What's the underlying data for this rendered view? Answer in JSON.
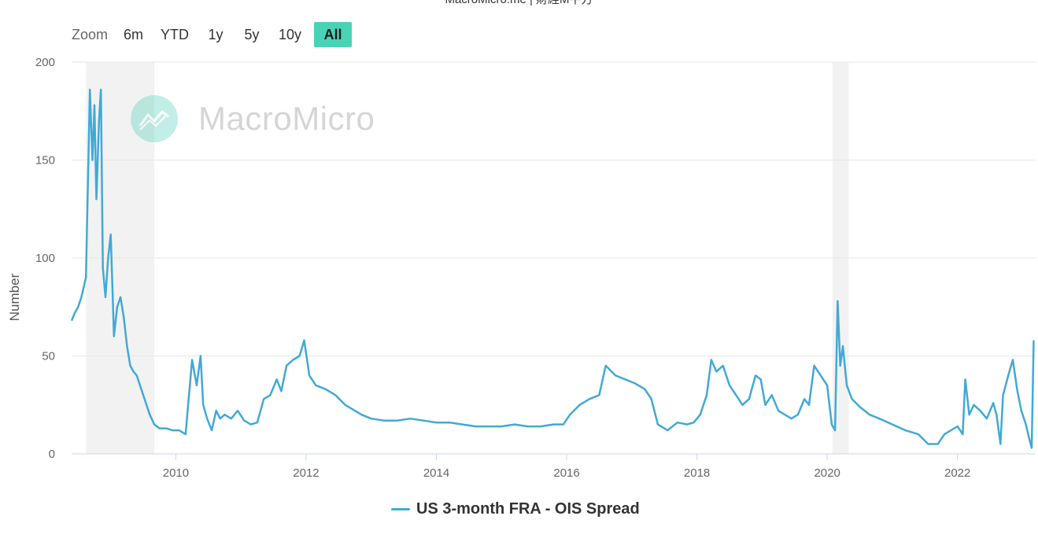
{
  "page": {
    "source_header": "MacroMicro.me | 財經M平方"
  },
  "zoom": {
    "label": "Zoom",
    "buttons": [
      {
        "label": "6m",
        "active": false
      },
      {
        "label": "YTD",
        "active": false
      },
      {
        "label": "1y",
        "active": false
      },
      {
        "label": "5y",
        "active": false
      },
      {
        "label": "10y",
        "active": false
      },
      {
        "label": "All",
        "active": true
      }
    ]
  },
  "watermark": {
    "text": "MacroMicro"
  },
  "colors": {
    "series": "#41a9d6",
    "recession": "#f2f2f2",
    "accent": "#49d3b6"
  },
  "chart_data": {
    "type": "line",
    "title": "",
    "xlabel": "",
    "ylabel": "Number",
    "xlim": [
      2008.4,
      2023.2
    ],
    "ylim": [
      0,
      200
    ],
    "yticks": [
      0,
      50,
      100,
      150,
      200
    ],
    "xticks": [
      2010,
      2012,
      2014,
      2016,
      2018,
      2020,
      2022
    ],
    "grid": true,
    "legend": "bottom-center",
    "shaded_periods": [
      [
        2008.62,
        2009.67
      ],
      [
        2020.08,
        2020.33
      ]
    ],
    "series": [
      {
        "name": "US 3-month FRA - OIS Spread",
        "x": [
          2008.4,
          2008.45,
          2008.5,
          2008.55,
          2008.62,
          2008.68,
          2008.72,
          2008.75,
          2008.78,
          2008.82,
          2008.85,
          2008.88,
          2008.92,
          2008.96,
          2009.0,
          2009.03,
          2009.05,
          2009.1,
          2009.15,
          2009.2,
          2009.25,
          2009.3,
          2009.35,
          2009.4,
          2009.45,
          2009.5,
          2009.55,
          2009.6,
          2009.67,
          2009.75,
          2009.85,
          2009.95,
          2010.05,
          2010.15,
          2010.25,
          2010.32,
          2010.38,
          2010.42,
          2010.48,
          2010.55,
          2010.62,
          2010.68,
          2010.75,
          2010.85,
          2010.95,
          2011.05,
          2011.15,
          2011.25,
          2011.35,
          2011.45,
          2011.55,
          2011.62,
          2011.7,
          2011.8,
          2011.9,
          2011.97,
          2012.05,
          2012.15,
          2012.3,
          2012.45,
          2012.6,
          2012.75,
          2012.85,
          2013.0,
          2013.2,
          2013.4,
          2013.6,
          2013.8,
          2014.0,
          2014.2,
          2014.4,
          2014.6,
          2014.8,
          2015.0,
          2015.2,
          2015.4,
          2015.6,
          2015.8,
          2015.95,
          2016.05,
          2016.2,
          2016.35,
          2016.5,
          2016.6,
          2016.75,
          2016.9,
          2017.05,
          2017.2,
          2017.3,
          2017.4,
          2017.55,
          2017.7,
          2017.85,
          2017.95,
          2018.05,
          2018.15,
          2018.22,
          2018.3,
          2018.4,
          2018.5,
          2018.6,
          2018.7,
          2018.8,
          2018.9,
          2018.98,
          2019.05,
          2019.15,
          2019.25,
          2019.35,
          2019.45,
          2019.55,
          2019.65,
          2019.72,
          2019.8,
          2019.9,
          2020.0,
          2020.07,
          2020.12,
          2020.16,
          2020.2,
          2020.24,
          2020.3,
          2020.38,
          2020.5,
          2020.65,
          2020.8,
          2021.0,
          2021.2,
          2021.4,
          2021.55,
          2021.7,
          2021.8,
          2021.9,
          2022.0,
          2022.08,
          2022.12,
          2022.18,
          2022.25,
          2022.35,
          2022.45,
          2022.55,
          2022.6,
          2022.66,
          2022.7,
          2022.78,
          2022.85,
          2022.92,
          2022.98,
          2023.05,
          2023.1,
          2023.14,
          2023.17
        ],
        "y": [
          68,
          72,
          75,
          80,
          90,
          186,
          150,
          178,
          130,
          170,
          186,
          95,
          80,
          100,
          112,
          82,
          60,
          75,
          80,
          70,
          55,
          45,
          42,
          40,
          35,
          30,
          25,
          20,
          15,
          13,
          13,
          12,
          12,
          10,
          48,
          35,
          50,
          25,
          18,
          12,
          22,
          18,
          20,
          18,
          22,
          17,
          15,
          16,
          28,
          30,
          38,
          32,
          45,
          48,
          50,
          58,
          40,
          35,
          33,
          30,
          25,
          22,
          20,
          18,
          17,
          17,
          18,
          17,
          16,
          16,
          15,
          14,
          14,
          14,
          15,
          14,
          14,
          15,
          15,
          20,
          25,
          28,
          30,
          45,
          40,
          38,
          36,
          33,
          28,
          15,
          12,
          16,
          15,
          16,
          20,
          30,
          48,
          42,
          45,
          35,
          30,
          25,
          28,
          40,
          38,
          25,
          30,
          22,
          20,
          18,
          20,
          28,
          25,
          45,
          40,
          35,
          15,
          12,
          78,
          45,
          55,
          35,
          28,
          24,
          20,
          18,
          15,
          12,
          10,
          5,
          5,
          10,
          12,
          14,
          10,
          38,
          20,
          25,
          22,
          18,
          26,
          20,
          5,
          30,
          40,
          48,
          32,
          22,
          15,
          8,
          3,
          58
        ]
      }
    ]
  }
}
